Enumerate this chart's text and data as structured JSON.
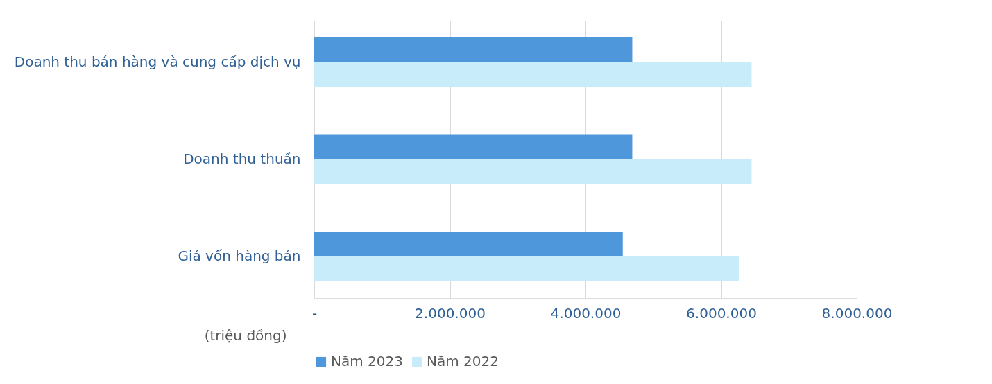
{
  "chart_data": {
    "type": "bar",
    "orientation": "horizontal",
    "categories": [
      "Doanh thu bán hàng và cung cấp dịch vụ",
      "Doanh thu thuần",
      "Giá vốn hàng bán"
    ],
    "series": [
      {
        "name": "Năm 2023",
        "color": "#4f97db",
        "values": [
          4690000,
          4690000,
          4550000
        ]
      },
      {
        "name": "Năm 2022",
        "color": "#c9ecfb",
        "values": [
          6450000,
          6450000,
          6260000
        ]
      }
    ],
    "xlabel": "(triệu đồng)",
    "xlim": [
      0,
      8000000
    ],
    "xticks": [
      {
        "value": 0,
        "label": "-"
      },
      {
        "value": 2000000,
        "label": "2.000.000"
      },
      {
        "value": 4000000,
        "label": "4.000.000"
      },
      {
        "value": 6000000,
        "label": "6.000.000"
      },
      {
        "value": 8000000,
        "label": "8.000.000"
      }
    ],
    "grid": "x",
    "legend": "bottom"
  }
}
